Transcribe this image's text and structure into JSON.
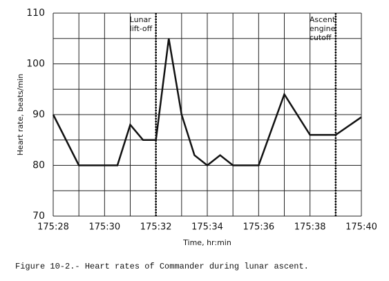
{
  "chart_data": {
    "type": "line",
    "xlabel": "Time, hr:min",
    "ylabel": "Heart rate, beats/min",
    "caption": "Figure 10-2.- Heart rates of Commander during lunar ascent.",
    "x": [
      10528,
      10529,
      10530.5,
      10531,
      10531.5,
      10532,
      10532.5,
      10533,
      10533.5,
      10534,
      10534.5,
      10535,
      10536,
      10537,
      10538,
      10539,
      10540
    ],
    "series": [
      {
        "name": "Commander",
        "color": "#111111",
        "values": [
          90,
          80,
          80,
          88,
          85,
          85,
          105,
          90,
          82,
          80,
          82,
          80,
          80,
          94,
          86,
          86,
          89.5
        ]
      }
    ],
    "xlim": [
      10528,
      10540
    ],
    "ylim": [
      70,
      110
    ],
    "xticks": [
      {
        "value": 10528,
        "label": "175:28"
      },
      {
        "value": 10530,
        "label": "175:30"
      },
      {
        "value": 10532,
        "label": "175:32"
      },
      {
        "value": 10534,
        "label": "175:34"
      },
      {
        "value": 10536,
        "label": "175:36"
      },
      {
        "value": 10538,
        "label": "175:38"
      },
      {
        "value": 10540,
        "label": "175:40"
      }
    ],
    "yticks": [
      70,
      80,
      90,
      100,
      110
    ],
    "xgrid_minor": [
      10529,
      10531,
      10533,
      10535,
      10537,
      10539
    ],
    "ygrid_minor": [
      75,
      85,
      95,
      105
    ],
    "grid": true,
    "annotations": [
      {
        "x": 10532,
        "lines": [
          "Lunar",
          "lift-off"
        ]
      },
      {
        "x": 10539,
        "lines": [
          "Ascent",
          "engine",
          "cutoff"
        ]
      }
    ]
  }
}
